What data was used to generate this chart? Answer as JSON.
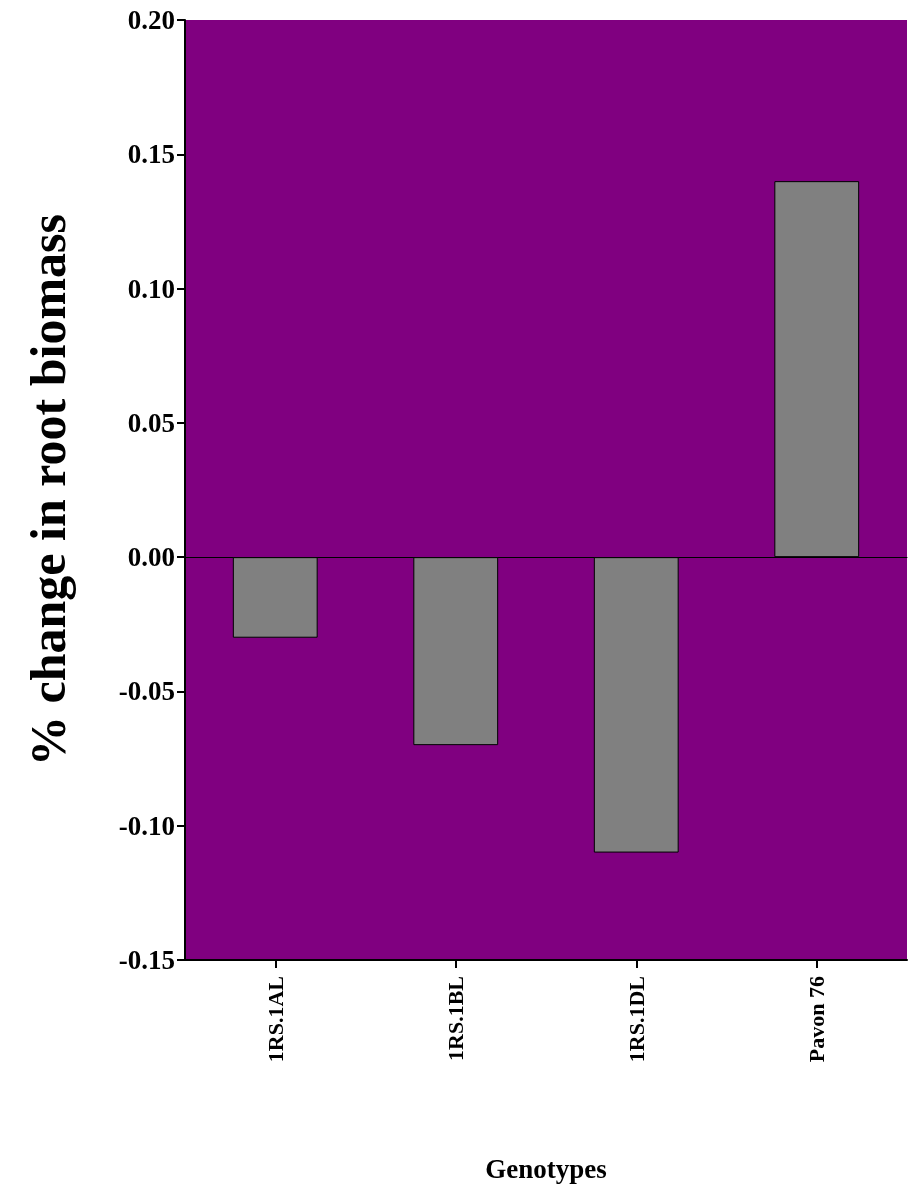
{
  "chart_data": {
    "type": "bar",
    "categories": [
      "1RS.1AL",
      "1RS.1BL",
      "1RS.1DL",
      "Pavon 76"
    ],
    "values": [
      -0.03,
      -0.07,
      -0.11,
      0.14
    ],
    "color": "#808080",
    "xlabel": "Genotypes",
    "ylabel": "% change in root biomass",
    "ylim": [
      -0.15,
      0.2
    ],
    "yticks": [
      {
        "value": -0.15,
        "label": "-0.15"
      },
      {
        "value": -0.1,
        "label": "-0.10"
      },
      {
        "value": -0.05,
        "label": "-0.05"
      },
      {
        "value": 0,
        "label": "0.00"
      },
      {
        "value": 0.05,
        "label": "0.05"
      },
      {
        "value": 0.1,
        "label": "0.10"
      },
      {
        "value": 0.15,
        "label": "0.15"
      },
      {
        "value": 0.2,
        "label": "0.20"
      }
    ]
  }
}
